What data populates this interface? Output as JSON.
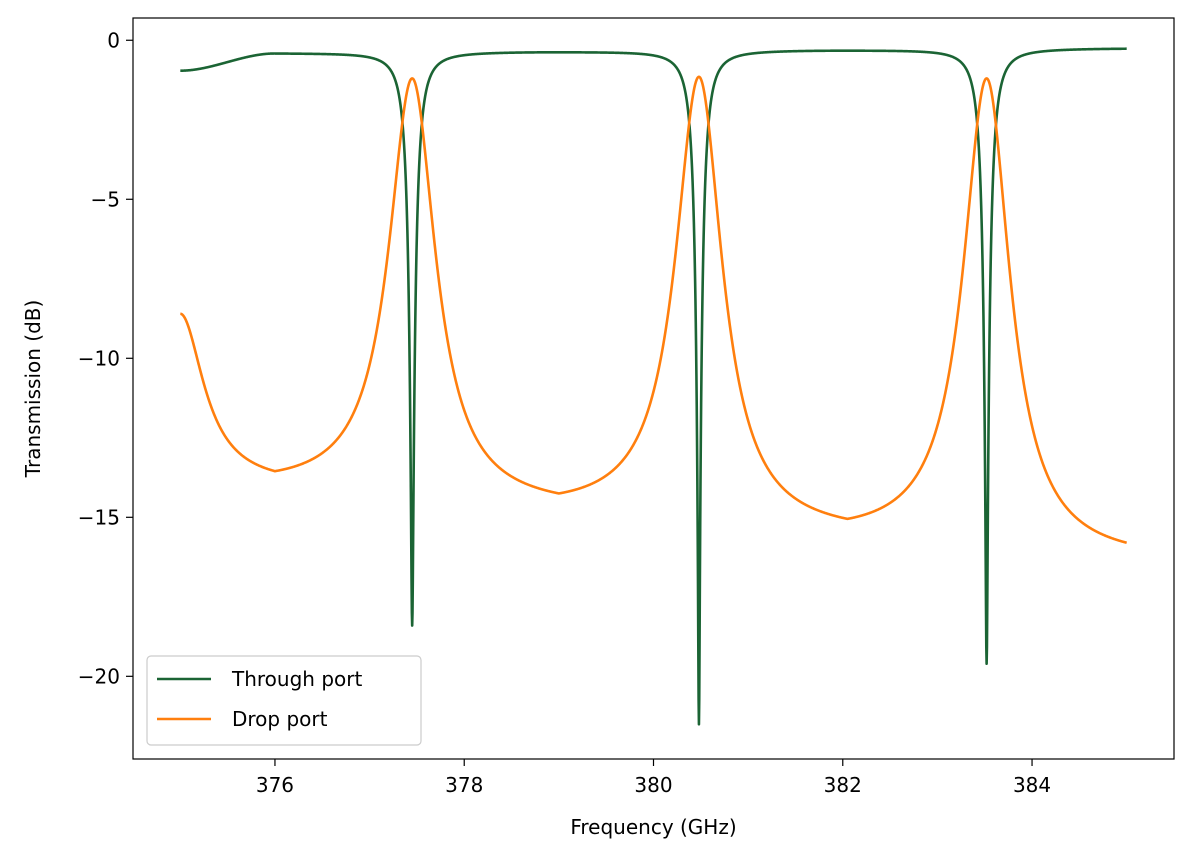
{
  "chart_data": {
    "type": "line",
    "xlabel": "Frequency (GHz)",
    "ylabel": "Transmission (dB)",
    "xlim": [
      374.5,
      385.5
    ],
    "ylim": [
      -22.6,
      0.7
    ],
    "xticks": [
      376,
      378,
      380,
      382,
      384
    ],
    "xtick_labels": [
      "376",
      "378",
      "380",
      "382",
      "384"
    ],
    "yticks": [
      0,
      -5,
      -10,
      -15,
      -20
    ],
    "ytick_labels": [
      "0",
      "−5",
      "−10",
      "−15",
      "−20"
    ],
    "grid": false,
    "legend_position": "lower-left",
    "x_range": [
      375,
      385
    ],
    "series": [
      {
        "name": "Through port",
        "color": "#1b6434",
        "resonances": [
          {
            "center": 377.45,
            "min_db": -18.4
          },
          {
            "center": 380.48,
            "min_db": -21.5
          },
          {
            "center": 383.52,
            "min_db": -19.6
          }
        ],
        "off_resonance_db": [
          -0.95,
          -0.4,
          -0.35,
          -0.3,
          -0.25
        ]
      },
      {
        "name": "Drop port",
        "color": "#ff7f0e",
        "peaks": [
          {
            "center": 377.45,
            "peak_db": -1.2
          },
          {
            "center": 380.48,
            "peak_db": -1.15
          },
          {
            "center": 383.52,
            "peak_db": -1.2
          }
        ],
        "points": [
          [
            375.0,
            -8.6
          ],
          [
            376.0,
            -13.55
          ],
          [
            377.45,
            -1.2
          ],
          [
            379.0,
            -14.25
          ],
          [
            380.48,
            -1.15
          ],
          [
            382.05,
            -15.05
          ],
          [
            383.52,
            -1.2
          ],
          [
            385.0,
            -15.8
          ]
        ]
      }
    ]
  }
}
